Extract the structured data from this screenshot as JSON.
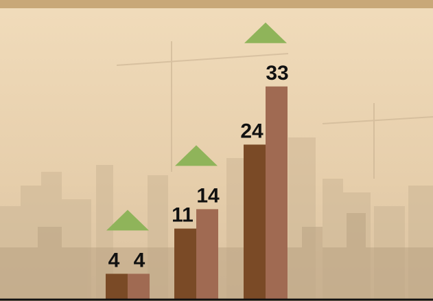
{
  "colors": {
    "top_band": "#c8a878",
    "background": "#e9d3b0",
    "series_a": "#7a4a26",
    "series_b": "#a06a52",
    "up_arrow": "#8fb45a",
    "baseline": "#111111"
  },
  "chart_data": {
    "type": "bar",
    "categories": [
      "",
      "",
      ""
    ],
    "series": [
      {
        "values": [
          4,
          11,
          24
        ]
      },
      {
        "values": [
          4,
          14,
          33
        ]
      }
    ],
    "title": "",
    "xlabel": "",
    "ylabel": "",
    "ylim": [
      0,
      40
    ],
    "grid": false,
    "legend": "none",
    "trend_markers": [
      "up",
      "up",
      "up"
    ]
  }
}
